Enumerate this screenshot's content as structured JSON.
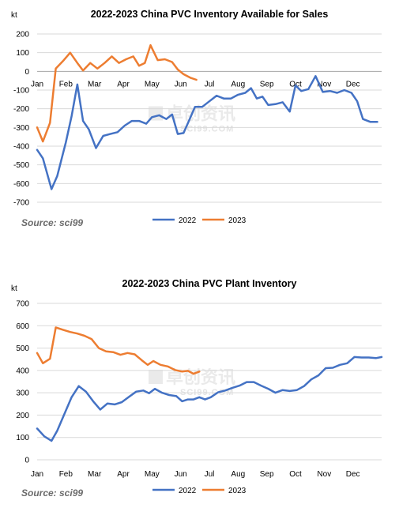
{
  "months": [
    "Jan",
    "Feb",
    "Mar",
    "Apr",
    "May",
    "Jun",
    "Jul",
    "Aug",
    "Sep",
    "Oct",
    "Nov",
    "Dec"
  ],
  "colors": {
    "2022": "#4472c4",
    "2023": "#ed7d31"
  },
  "watermark": {
    "cn": "卓创资讯",
    "en": "SCI99.COM"
  },
  "chart_data": [
    {
      "type": "line",
      "title": "2022-2023  China PVC Inventory Available for Sales",
      "ylabel": "kt",
      "ylim": [
        -700,
        200
      ],
      "yticks": [
        200,
        100,
        0,
        -100,
        -200,
        -300,
        -400,
        -500,
        -600,
        -700
      ],
      "source": "Source: sci99",
      "legend": "bottom",
      "series": [
        {
          "name": "2022",
          "points": [
            [
              0.0,
              -420
            ],
            [
              0.2,
              -465
            ],
            [
              0.5,
              -630
            ],
            [
              0.7,
              -560
            ],
            [
              1.0,
              -380
            ],
            [
              1.2,
              -240
            ],
            [
              1.4,
              -70
            ],
            [
              1.6,
              -265
            ],
            [
              1.8,
              -310
            ],
            [
              2.05,
              -410
            ],
            [
              2.3,
              -345
            ],
            [
              2.55,
              -335
            ],
            [
              2.8,
              -325
            ],
            [
              3.05,
              -290
            ],
            [
              3.3,
              -265
            ],
            [
              3.55,
              -265
            ],
            [
              3.8,
              -280
            ],
            [
              4.0,
              -245
            ],
            [
              4.25,
              -235
            ],
            [
              4.5,
              -255
            ],
            [
              4.7,
              -230
            ],
            [
              4.9,
              -335
            ],
            [
              5.1,
              -330
            ],
            [
              5.3,
              -260
            ],
            [
              5.5,
              -190
            ],
            [
              5.75,
              -190
            ],
            [
              6.0,
              -160
            ],
            [
              6.25,
              -130
            ],
            [
              6.5,
              -145
            ],
            [
              6.75,
              -145
            ],
            [
              7.0,
              -125
            ],
            [
              7.25,
              -115
            ],
            [
              7.45,
              -90
            ],
            [
              7.65,
              -145
            ],
            [
              7.85,
              -135
            ],
            [
              8.05,
              -180
            ],
            [
              8.3,
              -175
            ],
            [
              8.55,
              -165
            ],
            [
              8.8,
              -215
            ],
            [
              9.0,
              -75
            ],
            [
              9.2,
              -105
            ],
            [
              9.45,
              -95
            ],
            [
              9.7,
              -25
            ],
            [
              9.95,
              -110
            ],
            [
              10.2,
              -105
            ],
            [
              10.45,
              -115
            ],
            [
              10.7,
              -100
            ],
            [
              10.95,
              -115
            ],
            [
              11.15,
              -160
            ],
            [
              11.35,
              -255
            ],
            [
              11.6,
              -270
            ],
            [
              11.85,
              -270
            ]
          ]
        },
        {
          "name": "2023",
          "points": [
            [
              0.0,
              -300
            ],
            [
              0.2,
              -375
            ],
            [
              0.45,
              -275
            ],
            [
              0.65,
              15
            ],
            [
              0.9,
              55
            ],
            [
              1.15,
              100
            ],
            [
              1.4,
              45
            ],
            [
              1.6,
              5
            ],
            [
              1.85,
              45
            ],
            [
              2.1,
              15
            ],
            [
              2.35,
              45
            ],
            [
              2.6,
              80
            ],
            [
              2.85,
              45
            ],
            [
              3.1,
              65
            ],
            [
              3.35,
              80
            ],
            [
              3.55,
              30
            ],
            [
              3.75,
              45
            ],
            [
              3.95,
              140
            ],
            [
              4.2,
              60
            ],
            [
              4.45,
              65
            ],
            [
              4.7,
              50
            ],
            [
              4.9,
              10
            ],
            [
              5.1,
              -15
            ],
            [
              5.35,
              -35
            ],
            [
              5.55,
              -45
            ]
          ]
        }
      ]
    },
    {
      "type": "line",
      "title": "2022-2023  China PVC Plant Inventory",
      "ylabel": "kt",
      "ylim": [
        0,
        700
      ],
      "yticks": [
        700,
        600,
        500,
        400,
        300,
        200,
        100,
        0
      ],
      "source": "Source: sci99",
      "legend": "bottom",
      "series": [
        {
          "name": "2022",
          "points": [
            [
              0.0,
              140
            ],
            [
              0.25,
              105
            ],
            [
              0.5,
              85
            ],
            [
              0.7,
              130
            ],
            [
              0.95,
              205
            ],
            [
              1.2,
              280
            ],
            [
              1.45,
              330
            ],
            [
              1.7,
              305
            ],
            [
              1.95,
              262
            ],
            [
              2.2,
              225
            ],
            [
              2.45,
              252
            ],
            [
              2.7,
              248
            ],
            [
              2.95,
              258
            ],
            [
              3.2,
              282
            ],
            [
              3.45,
              305
            ],
            [
              3.7,
              310
            ],
            [
              3.9,
              298
            ],
            [
              4.1,
              318
            ],
            [
              4.35,
              300
            ],
            [
              4.6,
              290
            ],
            [
              4.85,
              285
            ],
            [
              5.05,
              262
            ],
            [
              5.25,
              270
            ],
            [
              5.45,
              270
            ],
            [
              5.65,
              280
            ],
            [
              5.85,
              270
            ],
            [
              6.05,
              280
            ],
            [
              6.3,
              302
            ],
            [
              6.55,
              310
            ],
            [
              6.8,
              322
            ],
            [
              7.05,
              332
            ],
            [
              7.3,
              348
            ],
            [
              7.55,
              348
            ],
            [
              7.8,
              332
            ],
            [
              8.05,
              318
            ],
            [
              8.3,
              300
            ],
            [
              8.55,
              312
            ],
            [
              8.8,
              308
            ],
            [
              9.05,
              312
            ],
            [
              9.3,
              330
            ],
            [
              9.55,
              360
            ],
            [
              9.8,
              378
            ],
            [
              10.05,
              410
            ],
            [
              10.3,
              412
            ],
            [
              10.55,
              425
            ],
            [
              10.8,
              432
            ],
            [
              11.05,
              460
            ],
            [
              11.3,
              458
            ],
            [
              11.55,
              458
            ],
            [
              11.8,
              455
            ],
            [
              12.0,
              460
            ]
          ]
        },
        {
          "name": "2023",
          "points": [
            [
              0.0,
              478
            ],
            [
              0.2,
              432
            ],
            [
              0.45,
              452
            ],
            [
              0.65,
              592
            ],
            [
              0.9,
              582
            ],
            [
              1.15,
              572
            ],
            [
              1.4,
              565
            ],
            [
              1.65,
              555
            ],
            [
              1.9,
              540
            ],
            [
              2.15,
              500
            ],
            [
              2.4,
              485
            ],
            [
              2.65,
              482
            ],
            [
              2.9,
              470
            ],
            [
              3.15,
              478
            ],
            [
              3.4,
              472
            ],
            [
              3.65,
              445
            ],
            [
              3.85,
              425
            ],
            [
              4.05,
              442
            ],
            [
              4.3,
              425
            ],
            [
              4.55,
              418
            ],
            [
              4.8,
              402
            ],
            [
              5.05,
              395
            ],
            [
              5.25,
              398
            ],
            [
              5.45,
              385
            ],
            [
              5.65,
              395
            ]
          ]
        }
      ]
    }
  ]
}
